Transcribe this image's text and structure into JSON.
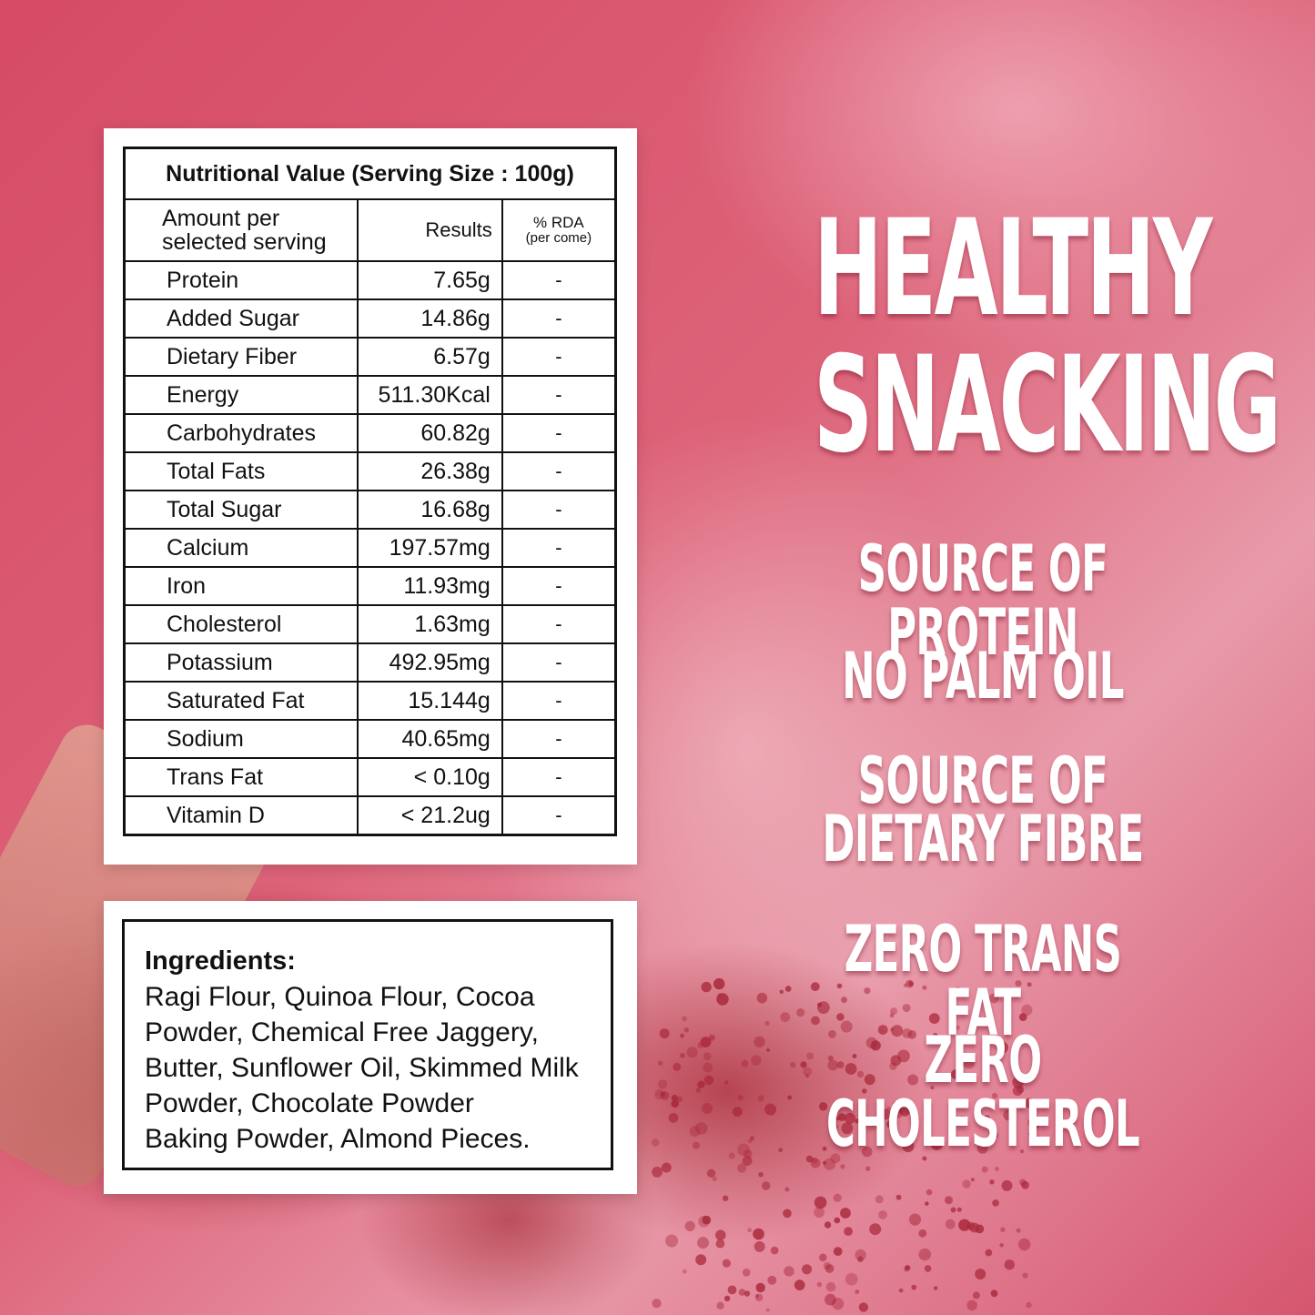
{
  "nutrition": {
    "title": "Nutritional Value (Serving Size : 100g)",
    "headers": {
      "amount_line1": "Amount per",
      "amount_line2": "selected serving",
      "results": "Results",
      "rda_line1": "% RDA",
      "rda_line2": "(per come)"
    },
    "rows": [
      {
        "name": "Protein",
        "value": "7.65g",
        "rda": "-"
      },
      {
        "name": "Added Sugar",
        "value": "14.86g",
        "rda": "-"
      },
      {
        "name": "Dietary Fiber",
        "value": "6.57g",
        "rda": "-"
      },
      {
        "name": "Energy",
        "value": "511.30Kcal",
        "rda": "-"
      },
      {
        "name": "Carbohydrates",
        "value": "60.82g",
        "rda": "-"
      },
      {
        "name": "Total Fats",
        "value": "26.38g",
        "rda": "-"
      },
      {
        "name": "Total Sugar",
        "value": "16.68g",
        "rda": "-"
      },
      {
        "name": "Calcium",
        "value": "197.57mg",
        "rda": "-"
      },
      {
        "name": "Iron",
        "value": "11.93mg",
        "rda": "-"
      },
      {
        "name": "Cholesterol",
        "value": "1.63mg",
        "rda": "-"
      },
      {
        "name": "Potassium",
        "value": "492.95mg",
        "rda": "-"
      },
      {
        "name": "Saturated Fat",
        "value": "15.144g",
        "rda": "-"
      },
      {
        "name": "Sodium",
        "value": "40.65mg",
        "rda": "-"
      },
      {
        "name": "Trans Fat",
        "value": "< 0.10g",
        "rda": "-"
      },
      {
        "name": "Vitamin D",
        "value": "< 21.2ug",
        "rda": "-"
      }
    ]
  },
  "ingredients": {
    "title": "Ingredients:",
    "lines": [
      "Ragi Flour, Quinoa Flour, Cocoa",
      "Powder, Chemical Free Jaggery,",
      "Butter, Sunflower Oil, Skimmed Milk",
      "Powder, Chocolate Powder",
      "Baking Powder, Almond Pieces."
    ]
  },
  "claims": {
    "headline_line1": "HEALTHY",
    "headline_line2": "SNACKING",
    "items": [
      "SOURCE OF PROTEIN",
      "NO PALM OIL",
      "SOURCE OF",
      "DIETARY FIBRE",
      "ZERO TRANS FAT",
      "ZERO CHOLESTEROL"
    ]
  },
  "colors": {
    "background": "#dd6379",
    "grain": "#a8283a",
    "text_light": "#ffffff",
    "text_dark": "#111111"
  }
}
